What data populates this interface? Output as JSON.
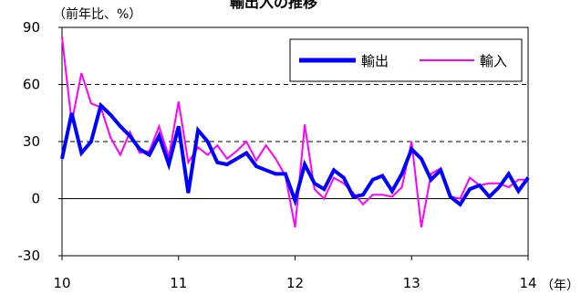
{
  "chart_data": {
    "type": "line",
    "title": "輸出入の推移",
    "ylabel": "（前年比、%）",
    "xlabel": "（年）",
    "ylim": [
      -30,
      90
    ],
    "yticks": [
      "90",
      "60",
      "30",
      "0",
      "-30"
    ],
    "ytick_values": [
      90,
      60,
      30,
      0,
      -30
    ],
    "xlim": [
      10,
      14
    ],
    "xticks": [
      "10",
      "11",
      "12",
      "13",
      "14"
    ],
    "xtick_values": [
      10,
      11,
      12,
      13,
      14
    ],
    "grid": "dashed at 30 and 60",
    "legend_position": "top-right",
    "series": [
      {
        "name": "輸出",
        "color": "#0000ff",
        "x": [
          10.0,
          10.083,
          10.167,
          10.25,
          10.333,
          10.417,
          10.5,
          10.583,
          10.667,
          10.75,
          10.833,
          10.917,
          11.0,
          11.083,
          11.167,
          11.25,
          11.333,
          11.417,
          11.5,
          11.583,
          11.667,
          11.75,
          11.833,
          11.917,
          12.0,
          12.083,
          12.167,
          12.25,
          12.333,
          12.417,
          12.5,
          12.583,
          12.667,
          12.75,
          12.833,
          12.917,
          13.0,
          13.083,
          13.167,
          13.25,
          13.333,
          13.417,
          13.5,
          13.583,
          13.667,
          13.75,
          13.833,
          13.917,
          14.0
        ],
        "values": [
          21,
          45,
          24,
          30,
          49,
          44,
          38,
          33,
          26,
          23,
          33,
          18,
          38,
          3,
          36,
          30,
          19,
          18,
          21,
          24,
          17,
          15,
          13,
          13,
          -1,
          18,
          8,
          5,
          15,
          11,
          1,
          2,
          10,
          12,
          4,
          13,
          26,
          21,
          10,
          15,
          1,
          -3,
          5,
          7,
          1,
          6,
          13,
          4,
          11
        ]
      },
      {
        "name": "輸入",
        "color": "#ff00ff",
        "x": [
          10.0,
          10.083,
          10.167,
          10.25,
          10.333,
          10.417,
          10.5,
          10.583,
          10.667,
          10.75,
          10.833,
          10.917,
          11.0,
          11.083,
          11.167,
          11.25,
          11.333,
          11.417,
          11.5,
          11.583,
          11.667,
          11.75,
          11.833,
          11.917,
          12.0,
          12.083,
          12.167,
          12.25,
          12.333,
          12.417,
          12.5,
          12.583,
          12.667,
          12.75,
          12.833,
          12.917,
          13.0,
          13.083,
          13.167,
          13.25,
          13.333,
          13.417,
          13.5,
          13.583,
          13.667,
          13.75,
          13.833,
          13.917,
          14.0
        ],
        "values": [
          85,
          40,
          66,
          50,
          48,
          32,
          23,
          35,
          24,
          25,
          38,
          22,
          51,
          19,
          27,
          23,
          28,
          21,
          25,
          30,
          20,
          28,
          21,
          12,
          -15,
          39,
          5,
          0,
          11,
          8,
          3,
          -3,
          2,
          2,
          1,
          6,
          30,
          -15,
          13,
          16,
          1,
          0,
          11,
          7,
          8,
          8,
          6,
          10,
          10
        ]
      }
    ]
  }
}
